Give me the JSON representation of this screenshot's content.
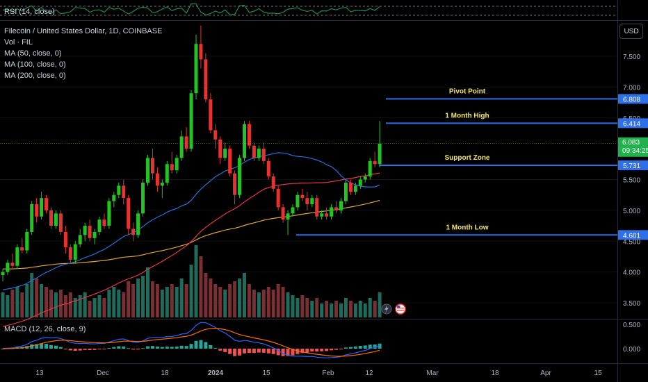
{
  "symbol_title": "Filecoin / United States Dollar, 1D, COINBASE",
  "currency_button": "USD",
  "rsi_pane": {
    "label": "RSI (14, close)"
  },
  "macd_pane": {
    "label": "MACD (12, 26, close, 9)",
    "y_ticks": [
      "0.500",
      "0.000"
    ],
    "colors": {
      "macd": "#2962ff",
      "signal": "#ff6d00",
      "hist_pos": "#26a69a",
      "hist_neg": "#ef5350"
    }
  },
  "indicators": [
    {
      "label": "Vol · FIL"
    },
    {
      "label": "MA (50, close, 0)",
      "color": "#2a6fd6"
    },
    {
      "label": "MA (100, close, 0)",
      "color": "#e53945"
    },
    {
      "label": "MA (200, close, 0)",
      "color": "#e0a83a"
    }
  ],
  "current_price": {
    "value": "6.083",
    "countdown": "09:34:25",
    "color": "#22b14c"
  },
  "annotations": [
    {
      "label": "Pivot Point",
      "price": 6.808,
      "tag": "6.808"
    },
    {
      "label": "1 Month High",
      "price": 6.414,
      "tag": "6.414"
    },
    {
      "label": "Support Zone",
      "price": 5.731,
      "tag": "5.731"
    },
    {
      "label": "1 Month Low",
      "price": 4.601,
      "tag": "4.601"
    }
  ],
  "chart_data": {
    "type": "candlestick",
    "y_ticks": [
      "7.500",
      "7.000",
      "6.500",
      "5.500",
      "5.000",
      "4.500",
      "4.000",
      "3.500"
    ],
    "y_tick_values": [
      7.5,
      7.0,
      6.5,
      5.5,
      5.0,
      4.5,
      4.0,
      3.5
    ],
    "x_ticks": [
      "13",
      "Dec",
      "18",
      "2024",
      "15",
      "Feb",
      "12",
      "Mar",
      "18",
      "Apr",
      "15"
    ],
    "ylim": [
      3.3,
      8.0
    ],
    "colors": {
      "up": "#22c322",
      "down": "#e8322f",
      "vol_up": "#1f6b5c",
      "vol_down": "#7a2f34"
    },
    "candles": [
      [
        3.95,
        4.05,
        3.85,
        4.0
      ],
      [
        4.0,
        4.2,
        3.95,
        4.15
      ],
      [
        4.15,
        4.3,
        4.05,
        4.1
      ],
      [
        4.1,
        4.45,
        4.05,
        4.4
      ],
      [
        4.4,
        4.55,
        4.3,
        4.35
      ],
      [
        4.35,
        4.7,
        4.3,
        4.65
      ],
      [
        4.65,
        5.15,
        4.6,
        5.1
      ],
      [
        5.1,
        5.2,
        4.8,
        4.9
      ],
      [
        4.9,
        5.3,
        4.85,
        5.2
      ],
      [
        5.2,
        5.25,
        4.95,
        5.0
      ],
      [
        5.0,
        5.05,
        4.7,
        4.75
      ],
      [
        4.75,
        5.0,
        4.7,
        4.95
      ],
      [
        4.95,
        5.0,
        4.6,
        4.65
      ],
      [
        4.65,
        4.75,
        4.3,
        4.4
      ],
      [
        4.4,
        4.45,
        4.15,
        4.2
      ],
      [
        4.2,
        4.5,
        4.15,
        4.45
      ],
      [
        4.45,
        4.7,
        4.4,
        4.6
      ],
      [
        4.6,
        4.8,
        4.5,
        4.75
      ],
      [
        4.75,
        4.85,
        4.5,
        4.55
      ],
      [
        4.55,
        4.7,
        4.45,
        4.65
      ],
      [
        4.65,
        4.9,
        4.6,
        4.85
      ],
      [
        4.85,
        4.95,
        4.7,
        4.75
      ],
      [
        4.75,
        5.2,
        4.7,
        5.15
      ],
      [
        5.15,
        5.3,
        5.05,
        5.25
      ],
      [
        5.25,
        5.45,
        5.2,
        5.4
      ],
      [
        5.4,
        5.5,
        5.1,
        5.2
      ],
      [
        5.2,
        5.25,
        4.6,
        4.7
      ],
      [
        4.7,
        4.8,
        4.5,
        4.6
      ],
      [
        4.6,
        5.0,
        4.55,
        4.95
      ],
      [
        4.95,
        5.5,
        4.9,
        5.45
      ],
      [
        5.45,
        5.9,
        5.4,
        5.85
      ],
      [
        5.85,
        6.0,
        5.5,
        5.6
      ],
      [
        5.6,
        5.7,
        5.3,
        5.4
      ],
      [
        5.4,
        5.5,
        5.2,
        5.45
      ],
      [
        5.45,
        5.8,
        5.4,
        5.75
      ],
      [
        5.75,
        5.95,
        5.6,
        5.65
      ],
      [
        5.65,
        5.9,
        5.6,
        5.85
      ],
      [
        5.85,
        6.3,
        5.8,
        6.2
      ],
      [
        6.2,
        6.35,
        5.95,
        6.0
      ],
      [
        6.0,
        6.95,
        5.95,
        6.9
      ],
      [
        6.9,
        7.85,
        6.8,
        7.7
      ],
      [
        7.7,
        8.0,
        7.3,
        7.45
      ],
      [
        7.45,
        7.55,
        6.75,
        6.8
      ],
      [
        6.8,
        6.9,
        6.25,
        6.3
      ],
      [
        6.3,
        6.4,
        6.0,
        6.15
      ],
      [
        6.15,
        6.2,
        5.75,
        5.85
      ],
      [
        5.85,
        6.1,
        5.8,
        6.0
      ],
      [
        6.0,
        6.05,
        5.55,
        5.6
      ],
      [
        5.6,
        5.65,
        5.1,
        5.25
      ],
      [
        5.25,
        5.9,
        5.2,
        5.85
      ],
      [
        5.85,
        6.45,
        5.8,
        6.4
      ],
      [
        6.4,
        6.45,
        6.0,
        6.05
      ],
      [
        6.05,
        6.1,
        5.8,
        5.85
      ],
      [
        5.85,
        6.05,
        5.8,
        6.0
      ],
      [
        6.0,
        6.1,
        5.75,
        5.8
      ],
      [
        5.8,
        5.85,
        5.5,
        5.55
      ],
      [
        5.55,
        5.6,
        5.3,
        5.35
      ],
      [
        5.35,
        5.4,
        5.0,
        5.05
      ],
      [
        5.05,
        5.1,
        4.8,
        4.85
      ],
      [
        4.85,
        5.0,
        4.6,
        4.95
      ],
      [
        4.95,
        5.1,
        4.9,
        5.05
      ],
      [
        5.05,
        5.3,
        5.0,
        5.25
      ],
      [
        5.25,
        5.35,
        5.15,
        5.2
      ],
      [
        5.2,
        5.3,
        5.0,
        5.1
      ],
      [
        5.1,
        5.25,
        5.05,
        5.2
      ],
      [
        5.2,
        5.25,
        4.85,
        4.9
      ],
      [
        4.9,
        5.0,
        4.85,
        4.95
      ],
      [
        4.95,
        5.05,
        4.85,
        4.9
      ],
      [
        4.9,
        5.1,
        4.85,
        5.05
      ],
      [
        5.05,
        5.15,
        4.95,
        5.0
      ],
      [
        5.0,
        5.2,
        4.95,
        5.15
      ],
      [
        5.15,
        5.5,
        5.1,
        5.45
      ],
      [
        5.45,
        5.5,
        5.25,
        5.3
      ],
      [
        5.3,
        5.45,
        5.25,
        5.4
      ],
      [
        5.4,
        5.55,
        5.35,
        5.5
      ],
      [
        5.5,
        5.6,
        5.45,
        5.55
      ],
      [
        5.55,
        5.85,
        5.5,
        5.8
      ],
      [
        5.8,
        5.95,
        5.7,
        5.75
      ],
      [
        5.75,
        6.45,
        5.7,
        6.083
      ]
    ],
    "volumes": [
      0.9,
      0.8,
      1.0,
      1.1,
      0.9,
      1.2,
      1.6,
      1.4,
      1.2,
      1.1,
      1.0,
      0.9,
      1.0,
      0.8,
      0.9,
      0.7,
      0.8,
      0.9,
      0.6,
      0.7,
      0.8,
      0.7,
      1.0,
      1.1,
      1.0,
      0.9,
      1.3,
      1.2,
      1.4,
      1.5,
      1.8,
      1.3,
      1.2,
      1.0,
      1.1,
      1.2,
      1.1,
      1.4,
      1.2,
      1.9,
      2.6,
      2.2,
      1.6,
      1.4,
      1.2,
      1.1,
      1.0,
      1.2,
      1.3,
      1.4,
      1.6,
      1.2,
      1.0,
      0.9,
      1.0,
      1.1,
      1.0,
      1.2,
      1.1,
      0.9,
      0.8,
      0.7,
      0.8,
      0.7,
      0.6,
      0.7,
      0.5,
      0.6,
      0.5,
      0.6,
      0.5,
      0.7,
      0.6,
      0.5,
      0.6,
      0.5,
      0.7,
      0.6,
      0.9
    ]
  }
}
